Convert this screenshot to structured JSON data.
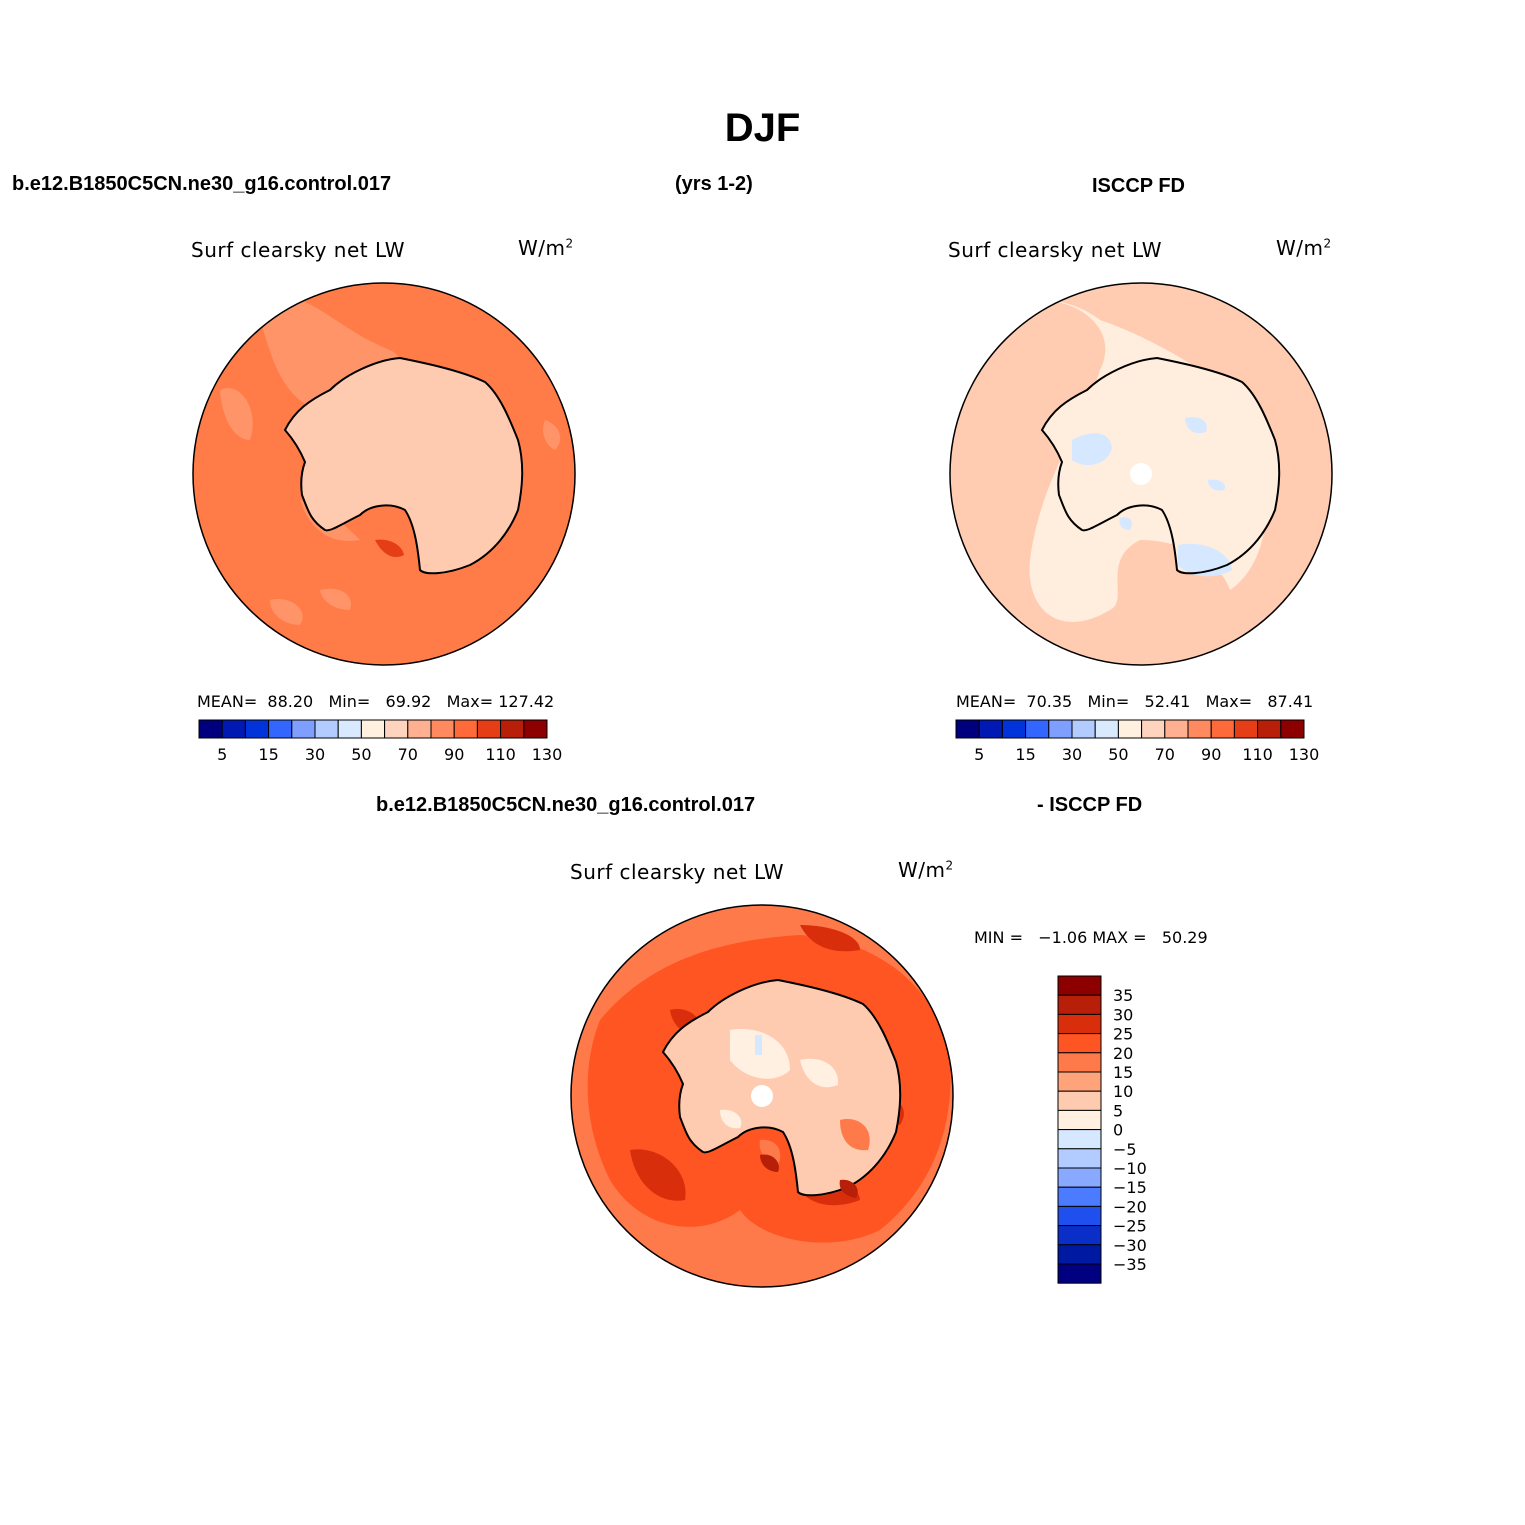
{
  "page": {
    "title": "DJF",
    "left_header": "b.e12.B1850C5CN.ne30_g16.control.017",
    "years": "(yrs 1-2)",
    "right_header": "ISCCP FD",
    "diff_case": "b.e12.B1850C5CN.ne30_g16.control.017",
    "diff_obs": "- ISCCP FD"
  },
  "panels": [
    {
      "id": "model",
      "variable": "Surf clearsky net LW",
      "units_base": "W/m",
      "units_exp": "2",
      "stats": {
        "mean_label": "MEAN=",
        "mean": "88.20",
        "min_label": "Min=",
        "min": "69.92",
        "max_label": "Max=",
        "max": "127.42"
      }
    },
    {
      "id": "obs",
      "variable": "Surf clearsky net LW",
      "units_base": "W/m",
      "units_exp": "2",
      "stats": {
        "mean_label": "MEAN=",
        "mean": "70.35",
        "min_label": "Min=",
        "min": "52.41",
        "max_label": "Max=",
        "max": "87.41"
      }
    },
    {
      "id": "diff",
      "variable": "Surf clearsky net LW",
      "units_base": "W/m",
      "units_exp": "2",
      "stats": {
        "min_label": "MIN =",
        "min": "−1.06",
        "max_label": "MAX =",
        "max": "50.29"
      }
    }
  ],
  "horizontal_colorbar": {
    "colors": [
      "#00007f",
      "#0019b2",
      "#0033d9",
      "#3366ff",
      "#7f9fff",
      "#b3ccff",
      "#d9eaff",
      "#fff0e0",
      "#ffd4bf",
      "#ffb090",
      "#ff8a60",
      "#ff6a3a",
      "#e53d15",
      "#b81f08",
      "#8c0000"
    ],
    "labels": [
      "5",
      "15",
      "30",
      "50",
      "70",
      "90",
      "110",
      "130"
    ]
  },
  "vertical_colorbar": {
    "colors": [
      "#8c0000",
      "#b81f08",
      "#d92e0c",
      "#ff5522",
      "#ff7a4a",
      "#ffa37a",
      "#ffcbb0",
      "#fff0e2",
      "#d5e8ff",
      "#b3ccff",
      "#89a8ff",
      "#4b7bff",
      "#1f50ee",
      "#0a2fc9",
      "#0019a2",
      "#000080"
    ],
    "labels": [
      "35",
      "30",
      "25",
      "20",
      "15",
      "10",
      "5",
      "0",
      "−5",
      "−10",
      "−15",
      "−20",
      "−25",
      "−30",
      "−35"
    ]
  },
  "colors": {
    "model_base": "#ff7c48",
    "model_mid": "#ff9468",
    "model_ice": "#ffcbb0",
    "obs_base": "#ffccb2",
    "obs_light": "#ffeedd",
    "obs_blue": "#d5e8ff",
    "diff_base": "#ff5522",
    "diff_mid": "#ff7a4a",
    "diff_light": "#ffcbb0",
    "diff_pale": "#fff0e2",
    "diff_dark": "#d92e0c"
  }
}
